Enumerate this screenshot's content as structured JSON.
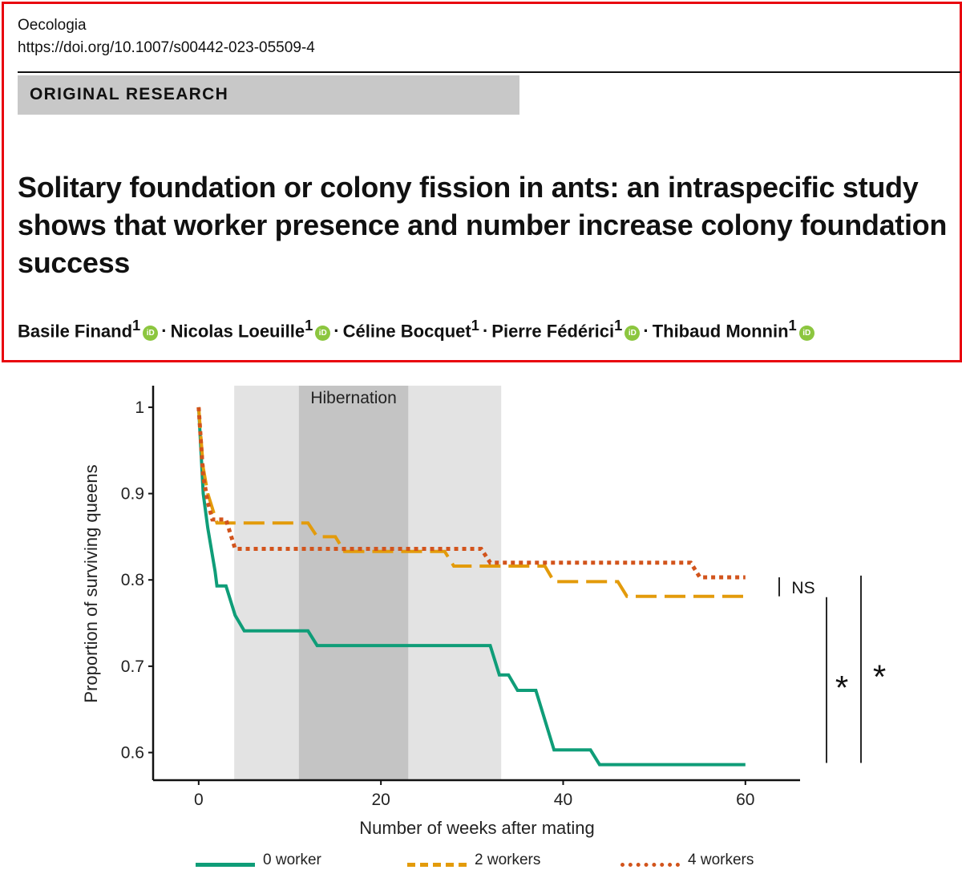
{
  "header": {
    "journal": "Oecologia",
    "doi": "https://doi.org/10.1007/s00442-023-05509-4",
    "article_type": "ORIGINAL RESEARCH",
    "title": "Solitary foundation or colony fission in ants: an intraspecific study shows that worker presence and number increase colony foundation success",
    "authors": [
      {
        "name": "Basile Finand",
        "affiliation": "1",
        "orcid": true
      },
      {
        "name": "Nicolas Loeuille",
        "affiliation": "1",
        "orcid": true
      },
      {
        "name": "Céline Bocquet",
        "affiliation": "1",
        "orcid": false
      },
      {
        "name": "Pierre Fédérici",
        "affiliation": "1",
        "orcid": true
      },
      {
        "name": "Thibaud Monnin",
        "affiliation": "1",
        "orcid": true
      }
    ],
    "author_separator": "·",
    "orcid_icon_text": "iD"
  },
  "chart_data": {
    "type": "line",
    "step": true,
    "xlabel": "Number of weeks after mating",
    "ylabel": "Proportion of surviving queens",
    "xlim": [
      -5,
      66
    ],
    "ylim": [
      0.568,
      1.025
    ],
    "xticks": [
      0,
      20,
      40,
      60
    ],
    "yticks": [
      0.6,
      0.7,
      0.8,
      0.9,
      1
    ],
    "yticklabels": [
      "0.6",
      "0.7",
      "0.8",
      "0.9",
      "1"
    ],
    "shaded_regions": [
      {
        "from": 3.9,
        "to": 33.2,
        "shade": "light"
      },
      {
        "from": 11,
        "to": 23,
        "shade": "dark",
        "label": "Hibernation"
      }
    ],
    "series": [
      {
        "name": "0 worker",
        "color": "#0f9d78",
        "style": "solid",
        "points": [
          [
            0,
            1
          ],
          [
            0.5,
            0.9
          ],
          [
            1,
            0.86
          ],
          [
            1.8,
            0.81
          ],
          [
            2,
            0.793
          ],
          [
            3,
            0.793
          ],
          [
            4,
            0.759
          ],
          [
            5,
            0.741
          ],
          [
            12,
            0.741
          ],
          [
            13,
            0.724
          ],
          [
            32,
            0.724
          ],
          [
            33,
            0.69
          ],
          [
            34,
            0.69
          ],
          [
            35,
            0.672
          ],
          [
            37,
            0.672
          ],
          [
            39,
            0.603
          ],
          [
            43,
            0.603
          ],
          [
            44,
            0.586
          ],
          [
            60,
            0.586
          ]
        ]
      },
      {
        "name": "2 workers",
        "color": "#e39b0b",
        "style": "dashed",
        "points": [
          [
            0,
            1
          ],
          [
            0.5,
            0.93
          ],
          [
            1,
            0.9
          ],
          [
            1.5,
            0.883
          ],
          [
            2,
            0.866
          ],
          [
            12,
            0.866
          ],
          [
            13,
            0.85
          ],
          [
            15,
            0.85
          ],
          [
            16,
            0.833
          ],
          [
            27,
            0.833
          ],
          [
            28,
            0.816
          ],
          [
            38,
            0.816
          ],
          [
            39,
            0.798
          ],
          [
            46,
            0.798
          ],
          [
            47,
            0.781
          ],
          [
            60,
            0.781
          ]
        ]
      },
      {
        "name": "4 workers",
        "color": "#d2541c",
        "style": "dotted",
        "points": [
          [
            0,
            1
          ],
          [
            0.5,
            0.92
          ],
          [
            1,
            0.89
          ],
          [
            1.5,
            0.87
          ],
          [
            3,
            0.87
          ],
          [
            4,
            0.836
          ],
          [
            31,
            0.836
          ],
          [
            32,
            0.82
          ],
          [
            54,
            0.82
          ],
          [
            55,
            0.803
          ],
          [
            60,
            0.803
          ]
        ]
      }
    ],
    "significance": [
      {
        "label": "NS",
        "from": 0.803,
        "to": 0.781
      },
      {
        "label": "*",
        "from": 0.78,
        "to": 0.588
      },
      {
        "label": "*",
        "from": 0.805,
        "to": 0.588
      }
    ]
  }
}
